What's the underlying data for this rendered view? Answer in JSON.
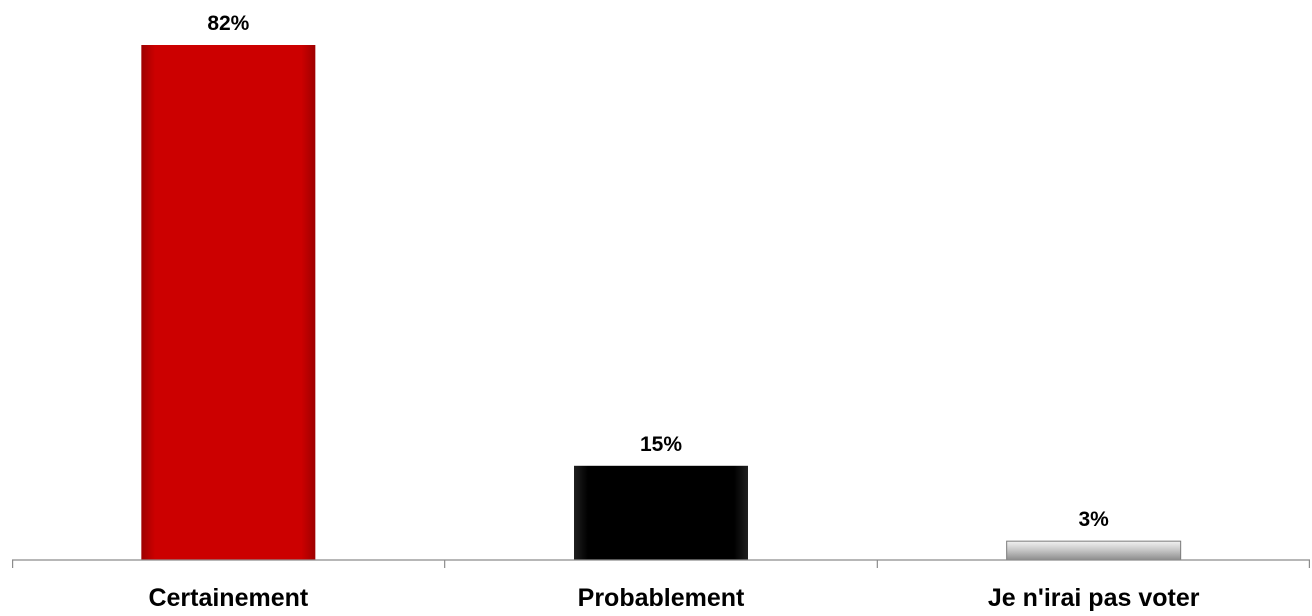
{
  "chart_data": {
    "type": "bar",
    "categories": [
      "Certainement",
      "Probablement",
      "Je n'irai pas voter"
    ],
    "values": [
      82,
      15,
      3
    ],
    "value_labels": [
      "82%",
      "15%",
      "3%"
    ],
    "colors": [
      "#cc0000",
      "#000000",
      "#bdbdbd"
    ],
    "ylim": [
      0,
      82
    ],
    "grid": false,
    "legend": "none"
  }
}
